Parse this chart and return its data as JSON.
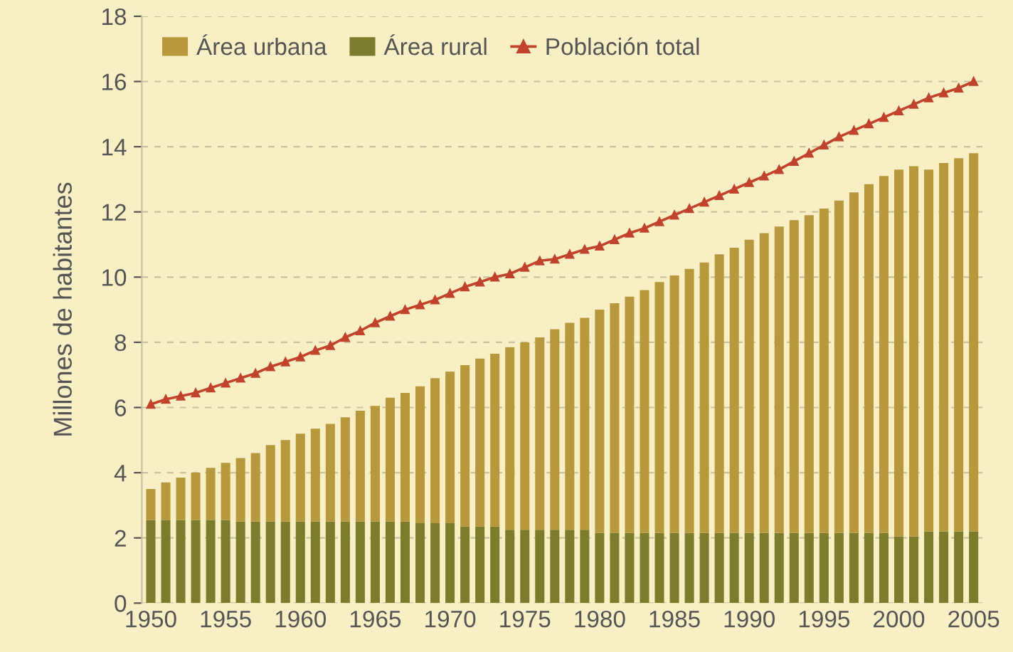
{
  "chart_data": {
    "type": "bar",
    "stacked": true,
    "ylabel": "Millones de habitantes",
    "x": [
      1950,
      1951,
      1952,
      1953,
      1954,
      1955,
      1956,
      1957,
      1958,
      1959,
      1960,
      1961,
      1962,
      1963,
      1964,
      1965,
      1966,
      1967,
      1968,
      1969,
      1970,
      1971,
      1972,
      1973,
      1974,
      1975,
      1976,
      1977,
      1978,
      1979,
      1980,
      1981,
      1982,
      1983,
      1984,
      1985,
      1986,
      1987,
      1988,
      1989,
      1990,
      1991,
      1992,
      1993,
      1994,
      1995,
      1996,
      1997,
      1998,
      1999,
      2000,
      2001,
      2002,
      2003,
      2004,
      2005
    ],
    "series": [
      {
        "name": "Área rural",
        "color": "#7b7d2c",
        "values": [
          2.55,
          2.55,
          2.55,
          2.55,
          2.55,
          2.55,
          2.5,
          2.5,
          2.5,
          2.5,
          2.5,
          2.5,
          2.5,
          2.5,
          2.5,
          2.5,
          2.5,
          2.5,
          2.45,
          2.45,
          2.45,
          2.35,
          2.35,
          2.35,
          2.25,
          2.25,
          2.25,
          2.25,
          2.25,
          2.25,
          2.15,
          2.15,
          2.15,
          2.15,
          2.15,
          2.15,
          2.15,
          2.15,
          2.15,
          2.15,
          2.15,
          2.15,
          2.15,
          2.15,
          2.15,
          2.15,
          2.15,
          2.15,
          2.15,
          2.15,
          2.05,
          2.05,
          2.2,
          2.2,
          2.2,
          2.2
        ]
      },
      {
        "name": "Área urbana",
        "color": "#b8983c",
        "values": [
          0.95,
          1.15,
          1.3,
          1.45,
          1.6,
          1.75,
          1.95,
          2.1,
          2.35,
          2.5,
          2.7,
          2.85,
          3.0,
          3.2,
          3.4,
          3.55,
          3.8,
          3.95,
          4.2,
          4.45,
          4.65,
          4.95,
          5.15,
          5.3,
          5.6,
          5.75,
          5.9,
          6.15,
          6.35,
          6.5,
          6.85,
          7.05,
          7.25,
          7.45,
          7.7,
          7.9,
          8.1,
          8.3,
          8.55,
          8.75,
          9.0,
          9.2,
          9.4,
          9.6,
          9.75,
          9.95,
          10.2,
          10.45,
          10.7,
          10.95,
          11.25,
          11.35,
          11.1,
          11.3,
          11.45,
          11.6
        ]
      },
      {
        "name": "Población total",
        "type": "line",
        "color": "#c2432c",
        "marker": "triangle",
        "values": [
          6.1,
          6.25,
          6.35,
          6.45,
          6.6,
          6.75,
          6.9,
          7.05,
          7.25,
          7.4,
          7.55,
          7.75,
          7.9,
          8.15,
          8.35,
          8.6,
          8.8,
          9.0,
          9.15,
          9.3,
          9.5,
          9.7,
          9.85,
          10.0,
          10.1,
          10.3,
          10.5,
          10.55,
          10.7,
          10.85,
          10.95,
          11.15,
          11.35,
          11.5,
          11.7,
          11.9,
          12.1,
          12.3,
          12.5,
          12.7,
          12.9,
          13.1,
          13.3,
          13.55,
          13.8,
          14.05,
          14.3,
          14.5,
          14.7,
          14.9,
          15.1,
          15.3,
          15.5,
          15.65,
          15.8,
          16.0
        ]
      }
    ],
    "xlim": [
      1949.4,
      2005.6
    ],
    "xticks": [
      1950,
      1955,
      1960,
      1965,
      1970,
      1975,
      1980,
      1985,
      1990,
      1995,
      2000,
      2005
    ],
    "ylim": [
      0,
      18
    ],
    "yticks": [
      0,
      2,
      4,
      6,
      8,
      10,
      12,
      14,
      16,
      18
    ],
    "grid": "y",
    "legend": "top left"
  }
}
